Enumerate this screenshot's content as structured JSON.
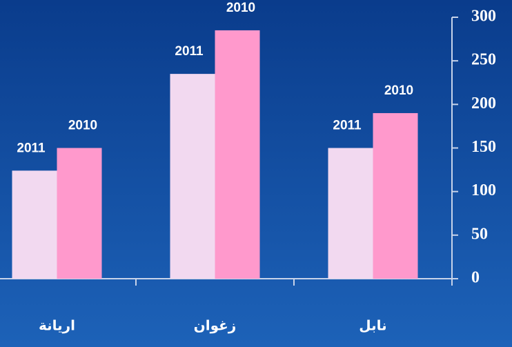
{
  "chart_data": {
    "type": "bar",
    "categories": [
      "نابل",
      "زغوان",
      "اريانة"
    ],
    "series": [
      {
        "name": "2011",
        "color": "#f2d9f0",
        "values": [
          150,
          235,
          124
        ]
      },
      {
        "name": "2010",
        "color": "#ff99cc",
        "values": [
          190,
          285,
          150
        ]
      }
    ],
    "ylim": [
      0,
      300
    ],
    "yticks": [
      0,
      50,
      100,
      150,
      200,
      250,
      300
    ],
    "y_axis_side": "right"
  }
}
